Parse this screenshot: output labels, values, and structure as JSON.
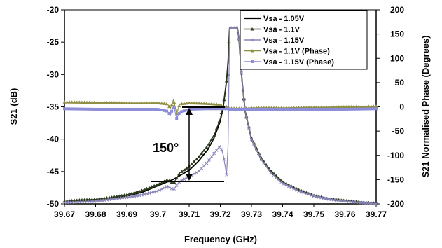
{
  "chart_data": {
    "type": "line",
    "xlabel": "Frequency (GHz)",
    "ylabel": "S21 (dB)",
    "y2label": "S21 Normalised Phase (Degrees)",
    "xlim": [
      39.67,
      39.77
    ],
    "ylim": [
      -50,
      -20
    ],
    "y2lim": [
      -200,
      200
    ],
    "xticks": [
      "39.67",
      "39.68",
      "39.69",
      "39.7",
      "39.71",
      "39.72",
      "39.73",
      "39.74",
      "39.75",
      "39.76",
      "39.77"
    ],
    "yticks": [
      "-20",
      "-25",
      "-30",
      "-35",
      "-40",
      "-45",
      "-50"
    ],
    "y2ticks": [
      "200",
      "150",
      "100",
      "50",
      "0",
      "-50",
      "-100",
      "-150",
      "-200"
    ],
    "grid": false,
    "legend_position": "top-right",
    "annotation": "150°",
    "colors": {
      "vsa_105": "#000000",
      "vsa_11": "#2b3a1a",
      "vsa_115": "#8a86b8",
      "vsa_11_phase": "#8f8f42",
      "vsa_115_phase": "#8c8cd8"
    },
    "series": [
      {
        "name": "Vsa - 1.05V",
        "axis": "left",
        "x": [
          39.67,
          39.675,
          39.68,
          39.685,
          39.69,
          39.695,
          39.7,
          39.705,
          39.71,
          39.713,
          39.716,
          39.718,
          39.72,
          39.721,
          39.722,
          39.7225,
          39.723,
          39.724,
          39.725,
          39.7255,
          39.726,
          39.7265,
          39.727,
          39.728,
          39.73,
          39.733,
          39.736,
          39.74,
          39.745,
          39.75,
          39.755,
          39.76,
          39.765,
          39.77
        ],
        "values": [
          -49.7,
          -49.6,
          -49.4,
          -49.2,
          -48.8,
          -48.2,
          -47.2,
          -46.2,
          -44.8,
          -43.4,
          -41.6,
          -39.8,
          -37.2,
          -34.8,
          -31,
          -28,
          -22.8,
          -22.8,
          -22.8,
          -22.8,
          -24.5,
          -28,
          -31,
          -35.8,
          -40,
          -43,
          -45,
          -46.8,
          -48,
          -48.8,
          -49.3,
          -49.6,
          -49.8,
          -50
        ]
      },
      {
        "name": "Vsa - 1.1V",
        "axis": "left",
        "x": [
          39.67,
          39.675,
          39.68,
          39.685,
          39.69,
          39.695,
          39.7,
          39.703,
          39.705,
          39.707,
          39.71,
          39.713,
          39.716,
          39.718,
          39.72,
          39.721,
          39.722,
          39.7225,
          39.723,
          39.724,
          39.725,
          39.7255,
          39.726,
          39.7265,
          39.727,
          39.728,
          39.73,
          39.733,
          39.736,
          39.74,
          39.745,
          39.75,
          39.755,
          39.76,
          39.765,
          39.77
        ],
        "values": [
          -49.6,
          -49.4,
          -49.3,
          -49,
          -48.6,
          -47.9,
          -47,
          -46.3,
          -46.8,
          -45.2,
          -44.2,
          -42.8,
          -41,
          -39.4,
          -36.8,
          -34.6,
          -31,
          -28,
          -22.8,
          -22.8,
          -22.8,
          -22.8,
          -24.5,
          -28,
          -31,
          -35.6,
          -39.8,
          -42.8,
          -44.8,
          -46.6,
          -47.8,
          -48.7,
          -49.2,
          -49.5,
          -49.7,
          -49.9
        ]
      },
      {
        "name": "Vsa -  1.15V",
        "axis": "left",
        "x": [
          39.67,
          39.675,
          39.68,
          39.685,
          39.69,
          39.695,
          39.7,
          39.703,
          39.705,
          39.707,
          39.71,
          39.713,
          39.716,
          39.718,
          39.72,
          39.721,
          39.722,
          39.7225,
          39.723,
          39.724,
          39.725,
          39.7255,
          39.726,
          39.7265,
          39.727,
          39.728,
          39.73,
          39.733,
          39.736,
          39.74,
          39.745,
          39.75,
          39.755,
          39.76,
          39.765,
          39.77
        ],
        "values": [
          -49.8,
          -49.7,
          -49.6,
          -49.3,
          -49,
          -48.6,
          -48,
          -47.3,
          -47.8,
          -46.5,
          -45.8,
          -45,
          -43.5,
          -42.2,
          -41,
          -42.5,
          -45.5,
          -41,
          -22.8,
          -22.8,
          -22.8,
          -22.8,
          -24.5,
          -28,
          -31,
          -35.8,
          -40,
          -43,
          -45,
          -46.8,
          -48,
          -48.8,
          -49.3,
          -49.6,
          -49.8,
          -50
        ]
      },
      {
        "name": "Vsa - 1.1V (Phase)",
        "axis": "right",
        "x": [
          39.67,
          39.68,
          39.69,
          39.7,
          39.703,
          39.704,
          39.705,
          39.706,
          39.707,
          39.71,
          39.715,
          39.718,
          39.72,
          39.721,
          39.722,
          39.7222,
          39.723,
          39.724,
          39.725,
          39.726,
          39.727,
          39.728,
          39.73,
          39.74,
          39.75,
          39.76,
          39.77
        ],
        "values": [
          10,
          9,
          8,
          8,
          6,
          -3,
          15,
          -14,
          6,
          8,
          7,
          6,
          4,
          0,
          0,
          -3,
          -3,
          -3,
          -3,
          -3,
          -3,
          -3,
          -2,
          -2,
          -1,
          0,
          1
        ]
      },
      {
        "name": "Vsa - 1.15V (Phase)",
        "axis": "right",
        "x": [
          39.67,
          39.68,
          39.69,
          39.7,
          39.703,
          39.704,
          39.705,
          39.706,
          39.707,
          39.71,
          39.715,
          39.718,
          39.72,
          39.721,
          39.722,
          39.7222,
          39.723,
          39.724,
          39.725,
          39.726,
          39.727,
          39.728,
          39.73,
          39.74,
          39.75,
          39.76,
          39.77
        ],
        "values": [
          -4,
          -5,
          -5,
          -5,
          -9,
          -17,
          3,
          -24,
          -11,
          -5,
          -4,
          -4,
          -4,
          -4,
          -4,
          -5,
          -5,
          -5,
          -5,
          -5,
          -5,
          -5,
          -5,
          -5,
          -5,
          -5,
          -4
        ]
      }
    ]
  }
}
